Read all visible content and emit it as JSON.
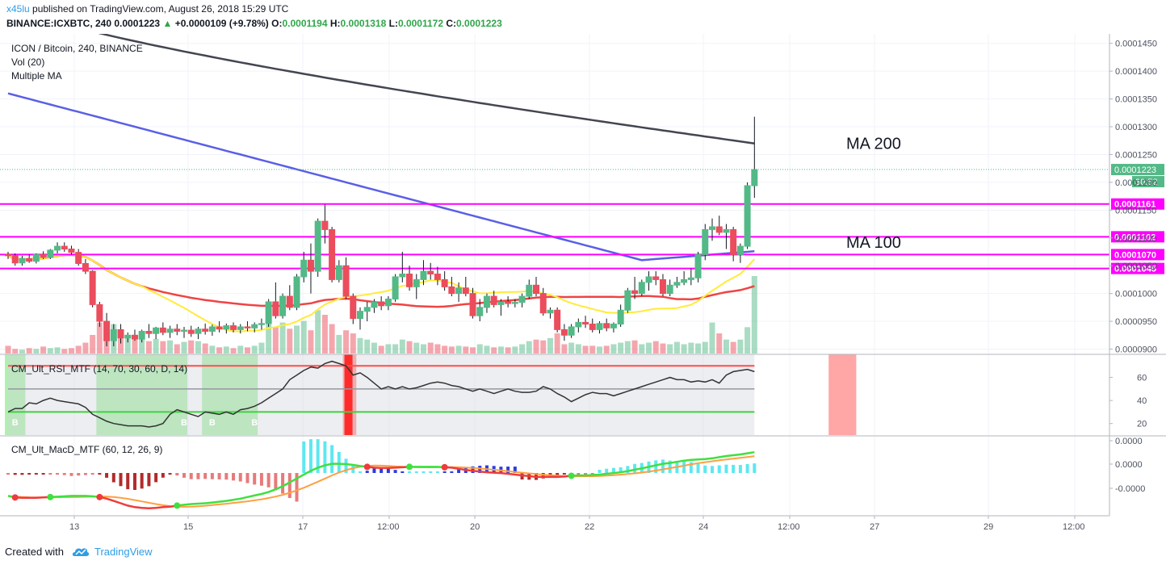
{
  "header": {
    "author": "x45lu",
    "publish_text": "published on TradingView.com, August 26, 2018 15:29 UTC",
    "symbol": "BINANCE:ICXBTC, 240",
    "last": "0.0001223",
    "change": "+0.0000109 (+9.78%)",
    "o_label": "O:",
    "o_value": "0.0001194",
    "h_label": "H:",
    "h_value": "0.0001318",
    "l_label": "L:",
    "l_value": "0.0001172",
    "c_label": "C:",
    "c_value": "0.0001223"
  },
  "legend": {
    "title": "ICON / Bitcoin, 240, BINANCE",
    "vol": "Vol (20)",
    "mma": "Multiple MA",
    "rsi": "CM_Ult_RSI_MTF (14, 70, 30, 60, D, 14)",
    "macd": "CM_Ult_MacD_MTF (60, 12, 26, 9)"
  },
  "footer": {
    "created": "Created with",
    "brand": "TradingView"
  },
  "colors": {
    "up": "#53b987",
    "down": "#eb4d5c",
    "magenta": "#ff00ff",
    "ma200": "#434651",
    "ma100": "#5a5fe6",
    "ma50": "#ef4444",
    "ma20": "#ffeb3b",
    "rsi_green": "#5ee35e",
    "rsi_red": "#ff4d4d",
    "price_label": "#53b987"
  },
  "chart_data": [
    {
      "type": "candlestick",
      "title": "ICON / Bitcoin, 240, BINANCE",
      "x_ticks": [
        "13",
        "15",
        "17",
        "12:00",
        "20",
        "22",
        "24",
        "12:00",
        "27",
        "29",
        "12:00"
      ],
      "y_ticks": [
        "0.0001450",
        "0.0001400",
        "0.0001350",
        "0.0001300",
        "0.0001250",
        "0.0001200",
        "0.0001150",
        "0.0001100",
        "0.0001050",
        "0.0001000",
        "0.0000950",
        "0.0000900"
      ],
      "ylim": [
        8.92e-05,
        0.0001467
      ],
      "horizontal_levels": [
        {
          "value": 0.0001161,
          "label": "0.0001161"
        },
        {
          "value": 0.0001102,
          "label": "0.0001102"
        },
        {
          "value": 0.000107,
          "label": "0.0001070"
        },
        {
          "value": 0.0001045,
          "label": "0.0001045"
        }
      ],
      "last_price": {
        "value": 0.0001223,
        "label": "0.0001223",
        "countdown": "30:52"
      },
      "annotations": [
        {
          "text": "MA 200",
          "at_value": 0.0001272
        },
        {
          "text": "MA 100",
          "at_value": 0.0001094
        }
      ],
      "candles": [
        [
          0.000107,
          0.0001075,
          0.0001062,
          0.0001068
        ],
        [
          0.0001068,
          0.0001072,
          0.000105,
          0.0001055
        ],
        [
          0.0001055,
          0.0001068,
          0.000105,
          0.0001063
        ],
        [
          0.0001063,
          0.000107,
          0.0001055,
          0.0001058
        ],
        [
          0.0001058,
          0.0001072,
          0.0001054,
          0.000107
        ],
        [
          0.000107,
          0.0001076,
          0.0001062,
          0.0001065
        ],
        [
          0.0001065,
          0.000108,
          0.0001062,
          0.0001078
        ],
        [
          0.0001078,
          0.0001092,
          0.0001072,
          0.0001085
        ],
        [
          0.0001085,
          0.0001092,
          0.0001075,
          0.000108
        ],
        [
          0.000108,
          0.0001086,
          0.000107,
          0.0001074
        ],
        [
          0.0001074,
          0.000108,
          0.000105,
          0.0001054
        ],
        [
          0.0001054,
          0.0001062,
          0.0001035,
          0.000104
        ],
        [
          0.000104,
          0.0001042,
          9.75e-05,
          9.8e-05
        ],
        [
          9.8e-05,
          9.85e-05,
          9.4e-05,
          9.5e-05
        ],
        [
          9.5e-05,
          9.65e-05,
          9.05e-05,
          9.15e-05
        ],
        [
          9.15e-05,
          9.45e-05,
          9.05e-05,
          9.35e-05
        ],
        [
          9.35e-05,
          9.45e-05,
          9.1e-05,
          9.2e-05
        ],
        [
          9.2e-05,
          9.3e-05,
          9.12e-05,
          9.25e-05
        ],
        [
          9.25e-05,
          9.35e-05,
          9.15e-05,
          9.18e-05
        ],
        [
          9.18e-05,
          9.35e-05,
          9.12e-05,
          9.32e-05
        ],
        [
          9.32e-05,
          9.45e-05,
          9.2e-05,
          9.28e-05
        ],
        [
          9.28e-05,
          9.4e-05,
          9.18e-05,
          9.38e-05
        ],
        [
          9.38e-05,
          9.48e-05,
          9.25e-05,
          9.3e-05
        ],
        [
          9.3e-05,
          9.42e-05,
          9.2e-05,
          9.36e-05
        ],
        [
          9.36e-05,
          9.45e-05,
          9.25e-05,
          9.32e-05
        ],
        [
          9.32e-05,
          9.4e-05,
          9.2e-05,
          9.34e-05
        ],
        [
          9.34e-05,
          9.42e-05,
          9.22e-05,
          9.28e-05
        ],
        [
          9.28e-05,
          9.4e-05,
          9.18e-05,
          9.36e-05
        ],
        [
          9.36e-05,
          9.46e-05,
          9.26e-05,
          9.32e-05
        ],
        [
          9.32e-05,
          9.44e-05,
          9.24e-05,
          9.4e-05
        ],
        [
          9.4e-05,
          9.5e-05,
          9.3e-05,
          9.36e-05
        ],
        [
          9.36e-05,
          9.46e-05,
          9.28e-05,
          9.42e-05
        ],
        [
          9.42e-05,
          9.48e-05,
          9.3e-05,
          9.35e-05
        ],
        [
          9.35e-05,
          9.45e-05,
          9.28e-05,
          9.4e-05
        ],
        [
          9.4e-05,
          9.5e-05,
          9.32e-05,
          9.38e-05
        ],
        [
          9.38e-05,
          9.48e-05,
          9.3e-05,
          9.44e-05
        ],
        [
          9.44e-05,
          9.55e-05,
          9.35e-05,
          9.46e-05
        ],
        [
          9.46e-05,
          9.9e-05,
          9.4e-05,
          9.85e-05
        ],
        [
          9.85e-05,
          0.000102,
          9.55e-05,
          9.6e-05
        ],
        [
          9.6e-05,
          0.0001,
          9.55e-05,
          9.95e-05
        ],
        [
          9.95e-05,
          0.0001015,
          9.7e-05,
          9.75e-05
        ],
        [
          9.75e-05,
          0.0001035,
          9.7e-05,
          0.000103
        ],
        [
          0.000103,
          0.0001075,
          0.000102,
          0.000106
        ],
        [
          0.000106,
          0.000109,
          0.0001,
          0.000104
        ],
        [
          0.000104,
          0.0001135,
          0.000103,
          0.000113
        ],
        [
          0.000113,
          0.000116,
          0.000109,
          0.0001115
        ],
        [
          0.0001115,
          0.000112,
          0.000102,
          0.0001025
        ],
        [
          0.0001025,
          0.000106,
          0.000102,
          0.000105
        ],
        [
          0.000105,
          0.0001065,
          9.9e-05,
          9.95e-05
        ],
        [
          9.95e-05,
          0.0001,
          9.45e-05,
          9.55e-05
        ],
        [
          9.55e-05,
          9.75e-05,
          9.35e-05,
          9.68e-05
        ],
        [
          9.68e-05,
          9.85e-05,
          9.5e-05,
          9.75e-05
        ],
        [
          9.75e-05,
          9.9e-05,
          9.65e-05,
          9.85e-05
        ],
        [
          9.85e-05,
          9.95e-05,
          9.7e-05,
          9.78e-05
        ],
        [
          9.78e-05,
          9.95e-05,
          9.7e-05,
          9.9e-05
        ],
        [
          9.9e-05,
          0.0001035,
          9.85e-05,
          0.000103
        ],
        [
          0.000103,
          0.0001075,
          0.000102,
          0.0001035
        ],
        [
          0.0001035,
          0.000105,
          0.0001005,
          0.0001012
        ],
        [
          0.0001012,
          0.0001035,
          9.9e-05,
          0.0001025
        ],
        [
          0.0001025,
          0.000106,
          0.0001015,
          0.000104
        ],
        [
          0.000104,
          0.0001055,
          0.0001025,
          0.0001035
        ],
        [
          0.0001035,
          0.0001048,
          0.0001015,
          0.0001025
        ],
        [
          0.0001025,
          0.000104,
          0.0001005,
          0.0001012
        ],
        [
          0.0001012,
          0.000103,
          9.95e-05,
          0.0001
        ],
        [
          0.0001,
          0.000102,
          9.85e-05,
          0.000101
        ],
        [
          0.000101,
          0.000103,
          9.95e-05,
          0.0001
        ],
        [
          0.0001,
          0.000101,
          9.55e-05,
          9.6e-05
        ],
        [
          9.6e-05,
          9.9e-05,
          9.5e-05,
          9.75e-05
        ],
        [
          9.75e-05,
          0.0001,
          9.65e-05,
          9.95e-05
        ],
        [
          9.95e-05,
          0.0001005,
          9.75e-05,
          9.8e-05
        ],
        [
          9.8e-05,
          9.9e-05,
          9.6e-05,
          9.85e-05
        ],
        [
          9.85e-05,
          9.95e-05,
          9.75e-05,
          9.82e-05
        ],
        [
          9.82e-05,
          9.9e-05,
          9.75e-05,
          9.84e-05
        ],
        [
          9.84e-05,
          0.0001,
          9.75e-05,
          9.95e-05
        ],
        [
          9.95e-05,
          0.0001025,
          9.9e-05,
          0.0001015
        ],
        [
          0.0001015,
          0.000103,
          9.95e-05,
          0.0001
        ],
        [
          0.0001,
          0.000101,
          9.6e-05,
          9.65e-05
        ],
        [
          9.65e-05,
          9.75e-05,
          9.55e-05,
          9.7e-05
        ],
        [
          9.7e-05,
          9.75e-05,
          9.3e-05,
          9.35e-05
        ],
        [
          9.35e-05,
          9.45e-05,
          9.15e-05,
          9.25e-05
        ],
        [
          9.25e-05,
          9.45e-05,
          9.2e-05,
          9.4e-05
        ],
        [
          9.4e-05,
          9.55e-05,
          9.3e-05,
          9.48e-05
        ],
        [
          9.48e-05,
          9.6e-05,
          9.38e-05,
          9.45e-05
        ],
        [
          9.45e-05,
          9.55e-05,
          9.3e-05,
          9.35e-05
        ],
        [
          9.35e-05,
          9.5e-05,
          9.28e-05,
          9.46e-05
        ],
        [
          9.46e-05,
          9.55e-05,
          9.32e-05,
          9.38e-05
        ],
        [
          9.38e-05,
          9.48e-05,
          9.3e-05,
          9.45e-05
        ],
        [
          9.45e-05,
          9.8e-05,
          9.4e-05,
          9.7e-05
        ],
        [
          9.7e-05,
          0.000101,
          9.65e-05,
          0.0001005
        ],
        [
          0.0001005,
          0.000103,
          9.9e-05,
          0.0001
        ],
        [
          0.0001,
          0.0001025,
          9.95e-05,
          0.000102
        ],
        [
          0.000102,
          0.000104,
          0.0001005,
          0.000103
        ],
        [
          0.000103,
          0.000104,
          0.0001015,
          0.0001025
        ],
        [
          0.0001025,
          0.0001035,
          9.95e-05,
          0.0001
        ],
        [
          0.0001,
          0.0001025,
          9.95e-05,
          0.0001015
        ],
        [
          0.0001015,
          0.000103,
          0.000101,
          0.000102
        ],
        [
          0.000102,
          0.000104,
          0.0001015,
          0.0001025
        ],
        [
          0.0001025,
          0.0001045,
          0.0001015,
          0.0001028
        ],
        [
          0.0001028,
          0.0001075,
          0.000102,
          0.000107
        ],
        [
          0.000107,
          0.0001125,
          0.000106,
          0.0001115
        ],
        [
          0.0001115,
          0.0001135,
          0.0001095,
          0.000112
        ],
        [
          0.000112,
          0.000114,
          0.0001105,
          0.000111
        ],
        [
          0.000111,
          0.0001125,
          0.000108,
          0.0001115
        ],
        [
          0.0001115,
          0.000112,
          0.0001058,
          0.000107
        ],
        [
          0.000107,
          0.000109,
          0.0001055,
          0.0001085
        ],
        [
          0.0001085,
          0.00012,
          0.000108,
          0.0001194
        ],
        [
          0.0001194,
          0.0001318,
          0.0001172,
          0.0001223
        ]
      ],
      "volumes": [
        10,
        6,
        5,
        7,
        6,
        9,
        7,
        8,
        6,
        7,
        10,
        14,
        24,
        40,
        20,
        38,
        30,
        22,
        18,
        22,
        16,
        19,
        16,
        17,
        12,
        15,
        17,
        16,
        13,
        10,
        8,
        9,
        7,
        10,
        8,
        10,
        14,
        62,
        34,
        40,
        32,
        36,
        42,
        30,
        56,
        50,
        38,
        24,
        30,
        26,
        20,
        18,
        14,
        10,
        12,
        12,
        18,
        16,
        14,
        12,
        14,
        12,
        10,
        9,
        10,
        9,
        8,
        12,
        10,
        8,
        9,
        8,
        9,
        12,
        16,
        18,
        17,
        20,
        26,
        12,
        14,
        12,
        10,
        10,
        9,
        10,
        12,
        14,
        16,
        17,
        12,
        14,
        16,
        13,
        12,
        15,
        12,
        14,
        13,
        15,
        40,
        26,
        18,
        15,
        18,
        34,
        100
      ]
    },
    {
      "type": "line",
      "title": "CM_Ult_RSI_MTF (14, 70, 30, 60, D, 14)",
      "y_ticks": [
        "60",
        "40",
        "20"
      ],
      "ylim": [
        10,
        80
      ],
      "levels": [
        70,
        50,
        30
      ],
      "series": [
        {
          "values": [
            30,
            33,
            33,
            38,
            37,
            40,
            42,
            40,
            39,
            38,
            37,
            34,
            28,
            25,
            22,
            20,
            19,
            18,
            18,
            18,
            17,
            18,
            20,
            28,
            32,
            30,
            28,
            26,
            30,
            29,
            28,
            30,
            28,
            32,
            33,
            35,
            38,
            42,
            46,
            50,
            58,
            62,
            66,
            69,
            68,
            72,
            74,
            72,
            70,
            62,
            64,
            60,
            55,
            50,
            52,
            50,
            52,
            50,
            51,
            53,
            55,
            56,
            55,
            53,
            52,
            50,
            48,
            50,
            48,
            46,
            48,
            50,
            48,
            47,
            47,
            48,
            52,
            50,
            46,
            43,
            39,
            42,
            45,
            47,
            46,
            46,
            44,
            46,
            48,
            50,
            52,
            54,
            56,
            58,
            60,
            58,
            58,
            56,
            57,
            56,
            58,
            55,
            62,
            65,
            66,
            67,
            65,
            60,
            64,
            70,
            74
          ]
        }
      ]
    },
    {
      "type": "line",
      "title": "CM_Ult_MacD_MTF (60, 12, 26, 9)",
      "y_ticks": [
        "0.0000",
        "0.0000",
        "-0.0000"
      ],
      "series": [
        {
          "values": [
            -0.55,
            -0.59,
            -0.6,
            -0.6,
            -0.6,
            -0.59,
            -0.58,
            -0.57,
            -0.56,
            -0.55,
            -0.55,
            -0.55,
            -0.56,
            -0.58,
            -0.62,
            -0.68,
            -0.74,
            -0.8,
            -0.84,
            -0.86,
            -0.87,
            -0.86,
            -0.84,
            -0.83,
            -0.8,
            -0.78,
            -0.76,
            -0.75,
            -0.74,
            -0.72,
            -0.7,
            -0.68,
            -0.65,
            -0.62,
            -0.58,
            -0.54,
            -0.5,
            -0.45,
            -0.38,
            -0.3,
            -0.2,
            -0.1,
            0,
            0.1,
            0.18,
            0.24,
            0.28,
            0.28,
            0.27,
            0.25,
            0.22,
            0.2,
            0.18,
            0.17,
            0.17,
            0.18,
            0.19,
            0.2,
            0.2,
            0.2,
            0.2,
            0.2,
            0.19,
            0.18,
            0.15,
            0.12,
            0.1,
            0.08,
            0.06,
            0.05,
            0.04,
            0.02,
            0,
            -0.02,
            -0.04,
            -0.06,
            -0.06,
            -0.06,
            -0.06,
            -0.05,
            -0.03,
            -0.02,
            -0.02,
            -0.01,
            0,
            0.02,
            0.04,
            0.06,
            0.09,
            0.13,
            0.16,
            0.2,
            0.24,
            0.28,
            0.3,
            0.33,
            0.36,
            0.38,
            0.39,
            0.4,
            0.42,
            0.45,
            0.48,
            0.5,
            0.52,
            0.55,
            0.58,
            0.6,
            0.62,
            0.65
          ]
        }
      ]
    }
  ]
}
